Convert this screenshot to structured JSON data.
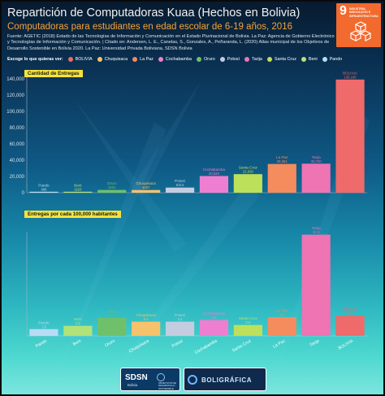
{
  "title": "Repartición de Computadoras Kuaa (Hechos en Bolivia)",
  "subtitle": "Computadoras para estudiantes en edad escolar de 6-19 años, 2016",
  "source": "Fuente: AGETIC (2018) Estado de las Tecnologías de Información y Comunicación en el Estado Plurinacional de Bolivia. La Paz: Agencia de Gobierno Electrónico y Tecnologías de Información y Comunicación. | Citado en: Andersen, L. E., Canelas, S., Gonzales, A., Peñaranda, L. (2020) Atlas municipal de los Objetivos de Desarrollo Sostenible en Bolivia 2020. La Paz: Universidad Privada Boliviana, SDSN Bolivia",
  "sdg": {
    "number": "9",
    "label": "INDUSTRIA, INNOVACIÓN E INFRAESTRUCTURA",
    "color": "#f26a2d",
    "icon": "cube-stack-icon"
  },
  "legend": {
    "title": "Escoge lo que quieras ver:",
    "items": [
      {
        "label": "BOLIVIA",
        "color": "#ef6a6a"
      },
      {
        "label": "Chuquisaca",
        "color": "#f6c26b"
      },
      {
        "label": "La Paz",
        "color": "#f48c5e"
      },
      {
        "label": "Cochabamba",
        "color": "#ee7fd0"
      },
      {
        "label": "Oruro",
        "color": "#6fc06a"
      },
      {
        "label": "Potosí",
        "color": "#c4cde0"
      },
      {
        "label": "Tarija",
        "color": "#ee74b4"
      },
      {
        "label": "Santa Cruz",
        "color": "#bde05a"
      },
      {
        "label": "Beni",
        "color": "#b2e27a"
      },
      {
        "label": "Pando",
        "color": "#b9dcf5"
      }
    ]
  },
  "panels": {
    "top_label": "Cantidad de Entregas",
    "bottom_label": "Entregas por cada 100,000 habitantes"
  },
  "footer": {
    "sdsn": "SDSN",
    "sdsn_sub": "Bolivia",
    "ods_text": "OBJETIVOS DE DESARROLLO SOSTENIBLE",
    "boli": "BOLIGRÁFICA"
  },
  "chart_data": [
    {
      "type": "bar",
      "title": "Cantidad de Entregas",
      "categories": [
        "Pando",
        "Beni",
        "Oruro",
        "Chuquisaca",
        "Potosí",
        "Cochabamba",
        "Santa Cruz",
        "La Paz",
        "Tarija",
        "BOLIVIA"
      ],
      "values": [
        466,
        1163,
        3401,
        3327,
        6313,
        20533,
        22829,
        35361,
        35700,
        139180
      ],
      "colors": [
        "#b9dcf5",
        "#b2e27a",
        "#6fc06a",
        "#f6c26b",
        "#c4cde0",
        "#ee7fd0",
        "#bde05a",
        "#f48c5e",
        "#ee74b4",
        "#ef6a6a"
      ],
      "value_labels": [
        "466",
        "1163",
        "3401",
        "3327",
        "6313",
        "20,533",
        "22,829",
        "35,361",
        "35,700",
        "139,180"
      ],
      "yticks": [
        "0",
        "20,000",
        "40,000",
        "60,000",
        "80,000",
        "100,000",
        "120,000",
        "140,000"
      ],
      "ylim": [
        0,
        140000
      ],
      "grid": false,
      "legend": "top"
    },
    {
      "type": "bar",
      "title": "Entregas por cada 100,000 habitantes",
      "categories": [
        "Pando",
        "Beni",
        "Oruro",
        "Chuquisaca",
        "Potosí",
        "Cochabamba",
        "Santa Cruz",
        "La Paz",
        "Tarija",
        "BOLIVIA"
      ],
      "values": [
        1.6,
        2.4,
        4.3,
        3.4,
        3.4,
        3.8,
        2.6,
        4.5,
        24.3,
        4.8
      ],
      "colors": [
        "#b9dcf5",
        "#b2e27a",
        "#6fc06a",
        "#f6c26b",
        "#c4cde0",
        "#ee7fd0",
        "#bde05a",
        "#f48c5e",
        "#ee74b4",
        "#ef6a6a"
      ],
      "value_labels": [
        "1.6",
        "2.4",
        "4.3",
        "3.4",
        "3.4",
        "3.8",
        "2.6",
        "4.5",
        "24.3",
        "4.8"
      ],
      "ylim": [
        0,
        25
      ],
      "grid": false
    }
  ]
}
